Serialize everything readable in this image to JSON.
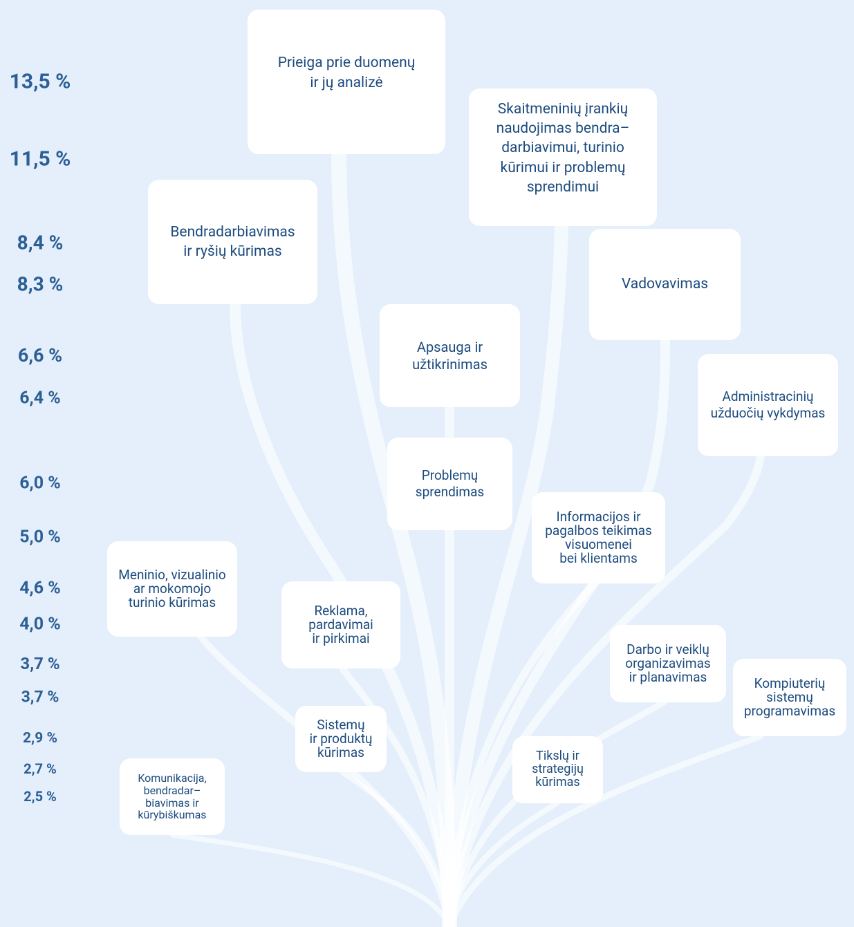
{
  "percentages": [
    "13,5 %",
    "11,5 %",
    "8,4 %",
    "8,3 %",
    "6,6 %",
    "6,4 %",
    "6,0 %",
    "5,0 %",
    "4,6 %",
    "4,0 %",
    "3,7 %",
    "3,7 %",
    "2,9 %",
    "2,7 %",
    "2,5 %"
  ],
  "nodes": [
    {
      "label": "Prieiga prie duomenų\nir jų analizė"
    },
    {
      "label": "Skaitmeninių įrankių\nnaudojimas bendra–\ndarbiavimui, turinio\nkūrimui ir problemų\nsprendimui"
    },
    {
      "label": "Bendradarbiavimas\nir ryšių kūrimas"
    },
    {
      "label": "Vadovavimas"
    },
    {
      "label": "Apsauga ir\nužtikrinimas"
    },
    {
      "label": "Administracinių\nužduočių vykdymas"
    },
    {
      "label": "Problemų\nsprendimas"
    },
    {
      "label": "Informacijos ir\npagalbos teikimas\nvisuomenei\nbei klientams"
    },
    {
      "label": "Meninio, vizualinio\nar mokomojo\nturinio kūrimas"
    },
    {
      "label": "Reklama,\npardavimai\nir pirkimai"
    },
    {
      "label": "Darbo ir veiklų\norganizavimas\nir planavimas"
    },
    {
      "label": "Kompiuterių\nsistemų\nprogramavimas"
    },
    {
      "label": "Sistemų\nir produktų\nkūrimas"
    },
    {
      "label": "Tikslų ir\nstrategijų\nkūrimas"
    },
    {
      "label": "Komunikacija,\nbendradar–\nbiavimas ir\nkūrybiškumas"
    }
  ]
}
